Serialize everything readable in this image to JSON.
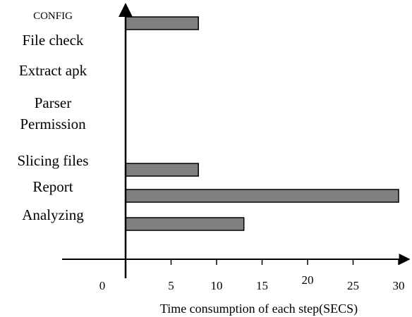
{
  "chart_data": {
    "type": "bar",
    "orientation": "horizontal",
    "categories": [
      "CONFIG",
      "File check",
      "Extract apk",
      "Parser Permission",
      "Slicing files",
      "Report",
      "Analyzing"
    ],
    "category_lines": [
      [
        "CONFIG"
      ],
      [
        "File check"
      ],
      [
        "Extract apk"
      ],
      [
        "Parser",
        "Permission"
      ],
      [
        "Slicing files"
      ],
      [
        "Report"
      ],
      [
        "Analyzing"
      ]
    ],
    "values": [
      8,
      0,
      0,
      0,
      8,
      30,
      13
    ],
    "xlabel": "Time consumption of each step(SECS)",
    "ylabel": "",
    "title": "",
    "xticks": [
      0,
      5,
      10,
      15,
      20,
      25,
      30
    ],
    "xlim": [
      0,
      30
    ],
    "grid": false,
    "legend": "none",
    "bar_color": "#808080",
    "bar_edge_color": "#000000"
  }
}
